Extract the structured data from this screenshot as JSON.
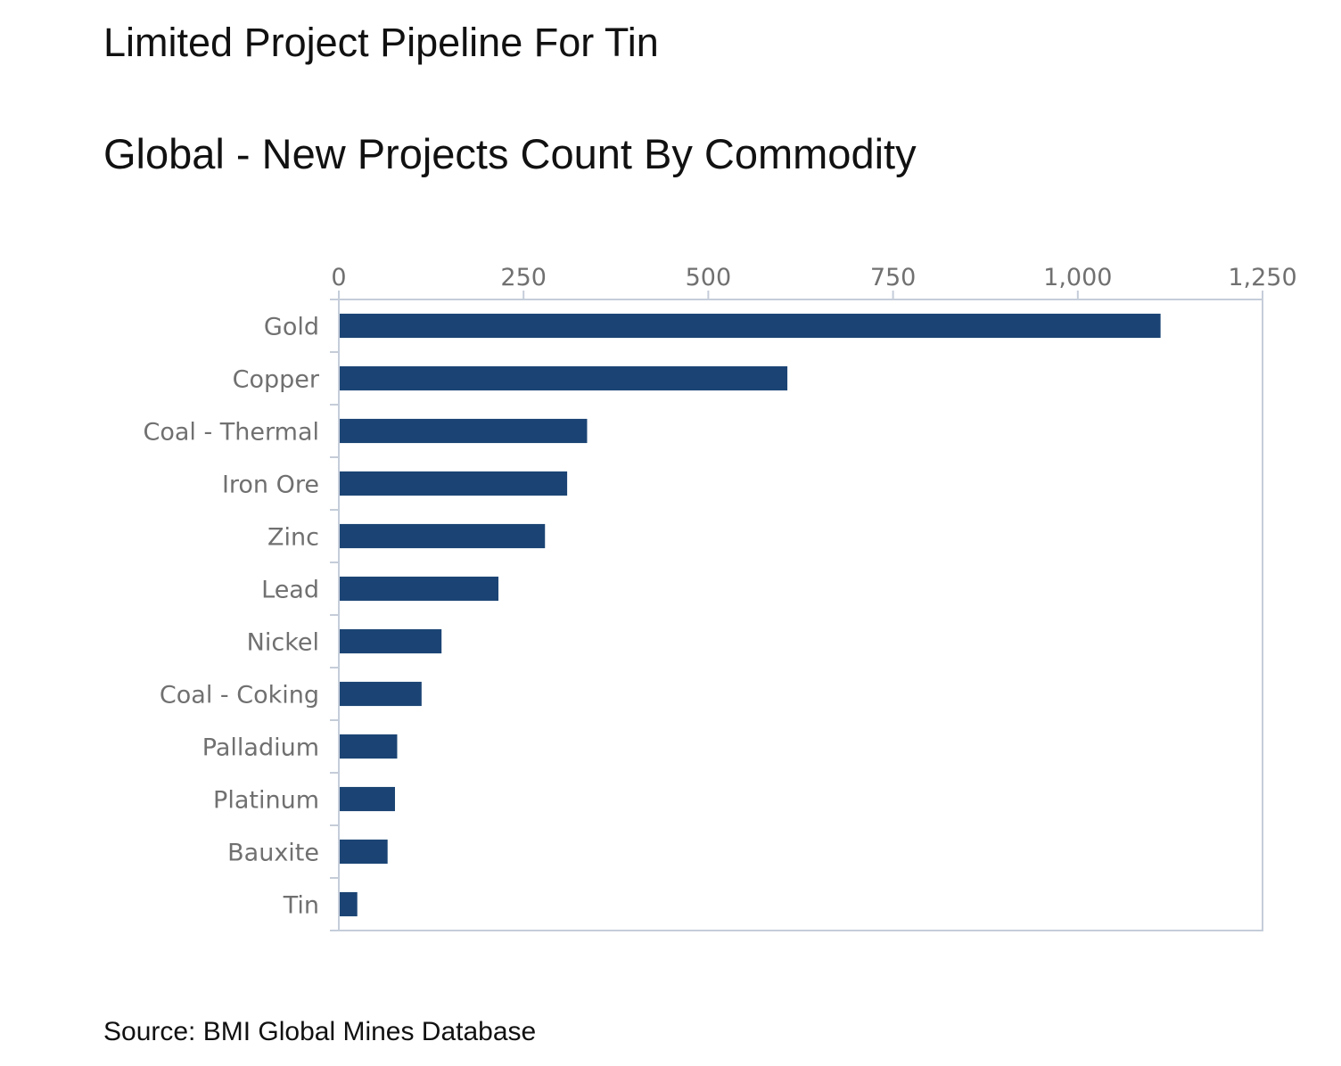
{
  "chart_data": {
    "type": "bar",
    "orientation": "horizontal",
    "title": "Limited Project Pipeline For Tin",
    "subtitle": "Global - New Projects Count By Commodity",
    "source": "Source: BMI Global Mines Database",
    "categories": [
      "Gold",
      "Copper",
      "Coal - Thermal",
      "Iron Ore",
      "Zinc",
      "Lead",
      "Nickel",
      "Coal - Coking",
      "Palladium",
      "Platinum",
      "Bauxite",
      "Tin"
    ],
    "values": [
      1112,
      607,
      336,
      309,
      279,
      216,
      139,
      112,
      79,
      76,
      66,
      25
    ],
    "xlim": [
      0,
      1250
    ],
    "ticks": [
      0,
      250,
      500,
      750,
      1000,
      1250
    ],
    "tick_labels": [
      "0",
      "250",
      "500",
      "750",
      "1,000",
      "1,250"
    ],
    "xlabel": "",
    "ylabel": "",
    "grid": false,
    "bar_color": "#1b4474",
    "axis_color": "#c5cdd9"
  }
}
